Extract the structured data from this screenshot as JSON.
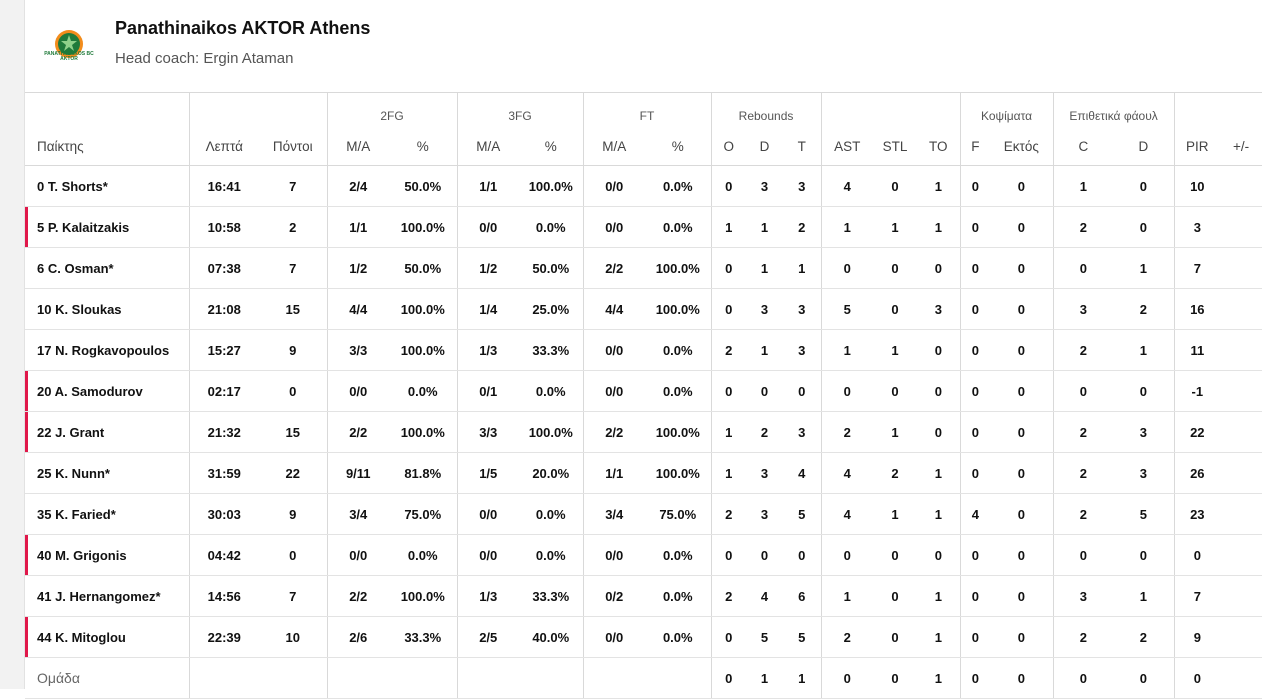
{
  "team": {
    "name": "Panathinaikos AKTOR Athens",
    "coach": "Head coach: Ergin Ataman",
    "logo_text": "PANATHINAIKOS BC AKTOR",
    "logo_color": "#1f7a3a",
    "logo_accent": "#f28c1c"
  },
  "bench_marker_color": "#e0184a",
  "groups": {
    "fg2": "2FG",
    "fg3": "3FG",
    "ft": "FT",
    "rebounds": "Rebounds",
    "blocks": "Κοψίματα",
    "fouls": "Επιθετικά φάουλ"
  },
  "columns": {
    "player": "Παίκτης",
    "min": "Λεπτά",
    "pts": "Πόντοι",
    "fg2_ma": "M/A",
    "fg2_pct": "%",
    "fg3_ma": "M/A",
    "fg3_pct": "%",
    "ft_ma": "M/A",
    "ft_pct": "%",
    "reb_o": "O",
    "reb_d": "D",
    "reb_t": "T",
    "ast": "AST",
    "stl": "STL",
    "to": "TO",
    "blk_f": "F",
    "blk_a": "Εκτός",
    "foul_c": "C",
    "foul_d": "D",
    "pir": "PIR",
    "pm": "+/-"
  },
  "players": [
    {
      "name": "0 T. Shorts*",
      "bench": false,
      "min": "16:41",
      "pts": "7",
      "fg2": "2/4",
      "fg2p": "50.0%",
      "fg3": "1/1",
      "fg3p": "100.0%",
      "ft": "0/0",
      "ftp": "0.0%",
      "o": "0",
      "d": "3",
      "t": "3",
      "ast": "4",
      "stl": "0",
      "to": "1",
      "bf": "0",
      "ba": "0",
      "fc": "1",
      "fd": "0",
      "pir": "10",
      "pm": ""
    },
    {
      "name": "5 P. Kalaitzakis",
      "bench": true,
      "min": "10:58",
      "pts": "2",
      "fg2": "1/1",
      "fg2p": "100.0%",
      "fg3": "0/0",
      "fg3p": "0.0%",
      "ft": "0/0",
      "ftp": "0.0%",
      "o": "1",
      "d": "1",
      "t": "2",
      "ast": "1",
      "stl": "1",
      "to": "1",
      "bf": "0",
      "ba": "0",
      "fc": "2",
      "fd": "0",
      "pir": "3",
      "pm": ""
    },
    {
      "name": "6 C. Osman*",
      "bench": false,
      "min": "07:38",
      "pts": "7",
      "fg2": "1/2",
      "fg2p": "50.0%",
      "fg3": "1/2",
      "fg3p": "50.0%",
      "ft": "2/2",
      "ftp": "100.0%",
      "o": "0",
      "d": "1",
      "t": "1",
      "ast": "0",
      "stl": "0",
      "to": "0",
      "bf": "0",
      "ba": "0",
      "fc": "0",
      "fd": "1",
      "pir": "7",
      "pm": ""
    },
    {
      "name": "10 K. Sloukas",
      "bench": false,
      "min": "21:08",
      "pts": "15",
      "fg2": "4/4",
      "fg2p": "100.0%",
      "fg3": "1/4",
      "fg3p": "25.0%",
      "ft": "4/4",
      "ftp": "100.0%",
      "o": "0",
      "d": "3",
      "t": "3",
      "ast": "5",
      "stl": "0",
      "to": "3",
      "bf": "0",
      "ba": "0",
      "fc": "3",
      "fd": "2",
      "pir": "16",
      "pm": ""
    },
    {
      "name": "17 N. Rogkavopoulos",
      "bench": false,
      "min": "15:27",
      "pts": "9",
      "fg2": "3/3",
      "fg2p": "100.0%",
      "fg3": "1/3",
      "fg3p": "33.3%",
      "ft": "0/0",
      "ftp": "0.0%",
      "o": "2",
      "d": "1",
      "t": "3",
      "ast": "1",
      "stl": "1",
      "to": "0",
      "bf": "0",
      "ba": "0",
      "fc": "2",
      "fd": "1",
      "pir": "11",
      "pm": ""
    },
    {
      "name": "20 A. Samodurov",
      "bench": true,
      "min": "02:17",
      "pts": "0",
      "fg2": "0/0",
      "fg2p": "0.0%",
      "fg3": "0/1",
      "fg3p": "0.0%",
      "ft": "0/0",
      "ftp": "0.0%",
      "o": "0",
      "d": "0",
      "t": "0",
      "ast": "0",
      "stl": "0",
      "to": "0",
      "bf": "0",
      "ba": "0",
      "fc": "0",
      "fd": "0",
      "pir": "-1",
      "pm": ""
    },
    {
      "name": "22 J. Grant",
      "bench": true,
      "min": "21:32",
      "pts": "15",
      "fg2": "2/2",
      "fg2p": "100.0%",
      "fg3": "3/3",
      "fg3p": "100.0%",
      "ft": "2/2",
      "ftp": "100.0%",
      "o": "1",
      "d": "2",
      "t": "3",
      "ast": "2",
      "stl": "1",
      "to": "0",
      "bf": "0",
      "ba": "0",
      "fc": "2",
      "fd": "3",
      "pir": "22",
      "pm": ""
    },
    {
      "name": "25 K. Nunn*",
      "bench": false,
      "min": "31:59",
      "pts": "22",
      "fg2": "9/11",
      "fg2p": "81.8%",
      "fg3": "1/5",
      "fg3p": "20.0%",
      "ft": "1/1",
      "ftp": "100.0%",
      "o": "1",
      "d": "3",
      "t": "4",
      "ast": "4",
      "stl": "2",
      "to": "1",
      "bf": "0",
      "ba": "0",
      "fc": "2",
      "fd": "3",
      "pir": "26",
      "pm": ""
    },
    {
      "name": "35 K. Faried*",
      "bench": false,
      "min": "30:03",
      "pts": "9",
      "fg2": "3/4",
      "fg2p": "75.0%",
      "fg3": "0/0",
      "fg3p": "0.0%",
      "ft": "3/4",
      "ftp": "75.0%",
      "o": "2",
      "d": "3",
      "t": "5",
      "ast": "4",
      "stl": "1",
      "to": "1",
      "bf": "4",
      "ba": "0",
      "fc": "2",
      "fd": "5",
      "pir": "23",
      "pm": ""
    },
    {
      "name": "40 M. Grigonis",
      "bench": true,
      "min": "04:42",
      "pts": "0",
      "fg2": "0/0",
      "fg2p": "0.0%",
      "fg3": "0/0",
      "fg3p": "0.0%",
      "ft": "0/0",
      "ftp": "0.0%",
      "o": "0",
      "d": "0",
      "t": "0",
      "ast": "0",
      "stl": "0",
      "to": "0",
      "bf": "0",
      "ba": "0",
      "fc": "0",
      "fd": "0",
      "pir": "0",
      "pm": ""
    },
    {
      "name": "41 J. Hernangomez*",
      "bench": false,
      "min": "14:56",
      "pts": "7",
      "fg2": "2/2",
      "fg2p": "100.0%",
      "fg3": "1/3",
      "fg3p": "33.3%",
      "ft": "0/2",
      "ftp": "0.0%",
      "o": "2",
      "d": "4",
      "t": "6",
      "ast": "1",
      "stl": "0",
      "to": "1",
      "bf": "0",
      "ba": "0",
      "fc": "3",
      "fd": "1",
      "pir": "7",
      "pm": ""
    },
    {
      "name": "44 K. Mitoglou",
      "bench": true,
      "min": "22:39",
      "pts": "10",
      "fg2": "2/6",
      "fg2p": "33.3%",
      "fg3": "2/5",
      "fg3p": "40.0%",
      "ft": "0/0",
      "ftp": "0.0%",
      "o": "0",
      "d": "5",
      "t": "5",
      "ast": "2",
      "stl": "0",
      "to": "1",
      "bf": "0",
      "ba": "0",
      "fc": "2",
      "fd": "2",
      "pir": "9",
      "pm": ""
    }
  ],
  "team_row": {
    "name": "Ομάδα",
    "min": "",
    "pts": "",
    "fg2": "",
    "fg2p": "",
    "fg3": "",
    "fg3p": "",
    "ft": "",
    "ftp": "",
    "o": "0",
    "d": "1",
    "t": "1",
    "ast": "0",
    "stl": "0",
    "to": "1",
    "bf": "0",
    "ba": "0",
    "fc": "0",
    "fd": "0",
    "pir": "0",
    "pm": ""
  }
}
